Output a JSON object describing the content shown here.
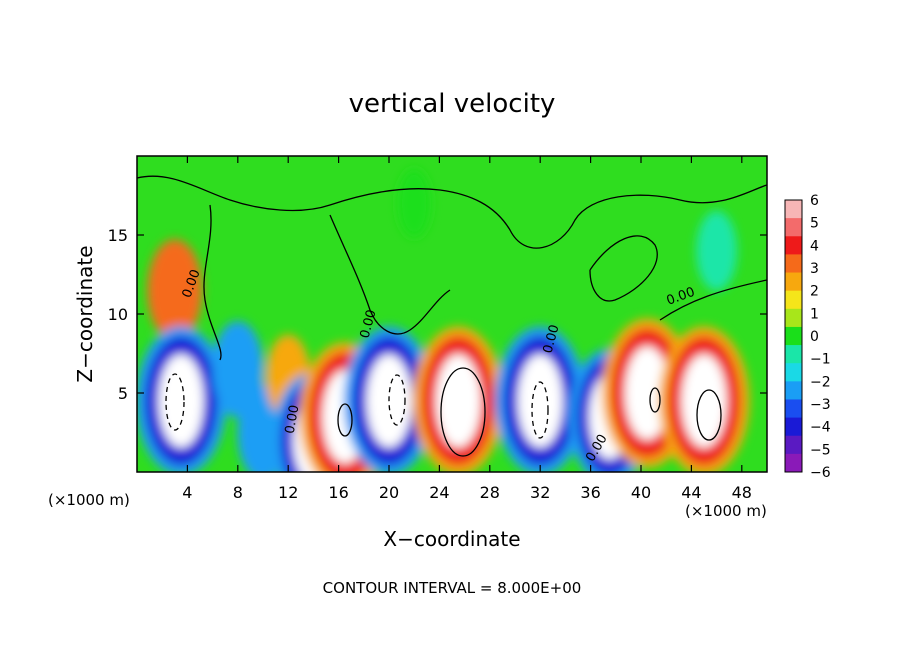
{
  "chart_data": {
    "type": "heatmap",
    "title": "vertical velocity",
    "xlabel": "X−coordinate",
    "ylabel": "Z−coordinate",
    "x_unit_left": "(×1000 m)",
    "x_unit_right": "(×1000 m)",
    "footer": "CONTOUR INTERVAL = 8.000E+00",
    "contour_label": "0.00",
    "xlim": [
      0,
      50
    ],
    "ylim": [
      0,
      20
    ],
    "x_ticks": [
      4,
      8,
      12,
      16,
      20,
      24,
      28,
      32,
      36,
      40,
      44,
      48
    ],
    "y_ticks": [
      5,
      10,
      15
    ],
    "colorbar": {
      "ticks": [
        "6",
        "5",
        "4",
        "3",
        "2",
        "1",
        "0",
        "−1",
        "−2",
        "−3",
        "−4",
        "−5",
        "−6"
      ],
      "colors": [
        "#f7b6b6",
        "#f36b6b",
        "#ee1a1a",
        "#f56a1a",
        "#f7a80e",
        "#f5e51a",
        "#a8e61a",
        "#1adf1a",
        "#1ae6a8",
        "#1ad9e6",
        "#1a9ef5",
        "#1a4ef0",
        "#1a1ad6",
        "#5a1ac2",
        "#8a1ab8"
      ]
    },
    "features": [
      {
        "x": 3.0,
        "z": 11.5,
        "w": 3.5
      },
      {
        "x": 3.5,
        "z": 4.5,
        "w": -6
      },
      {
        "x": 8.0,
        "z": 6.5,
        "w": -3
      },
      {
        "x": 10.0,
        "z": 2.5,
        "w": -3
      },
      {
        "x": 12.0,
        "z": 6.0,
        "w": 2
      },
      {
        "x": 14.0,
        "z": 2.0,
        "w": -5
      },
      {
        "x": 16.5,
        "z": 3.5,
        "w": 6
      },
      {
        "x": 20.0,
        "z": 4.5,
        "w": -6
      },
      {
        "x": 25.5,
        "z": 4.5,
        "w": 6
      },
      {
        "x": 32.0,
        "z": 4.5,
        "w": -6
      },
      {
        "x": 37.5,
        "z": 3.5,
        "w": -5
      },
      {
        "x": 40.5,
        "z": 5.0,
        "w": 6
      },
      {
        "x": 45.0,
        "z": 4.5,
        "w": 6
      },
      {
        "x": 46.0,
        "z": 14.0,
        "w": -1.5
      },
      {
        "x": 22.0,
        "z": 17.0,
        "w": 0.5
      }
    ]
  }
}
